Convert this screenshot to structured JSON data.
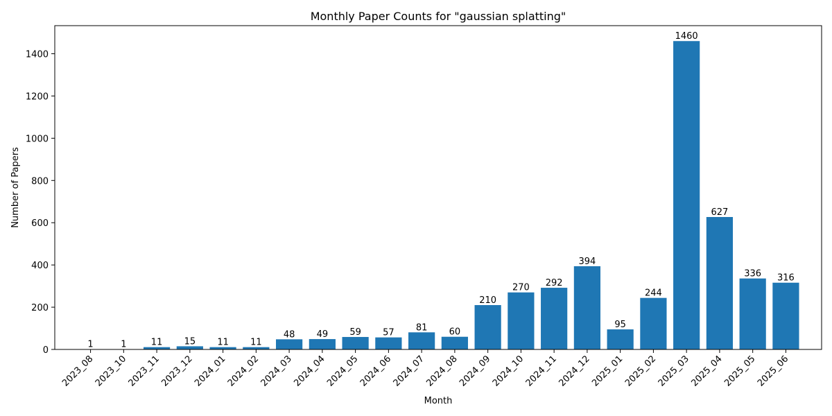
{
  "chart_data": {
    "type": "bar",
    "title": "Monthly Paper Counts for \"gaussian splatting\"",
    "xlabel": "Month",
    "ylabel": "Number of Papers",
    "ylim": [
      0,
      1533
    ],
    "yticks": [
      0,
      200,
      400,
      600,
      800,
      1000,
      1200,
      1400
    ],
    "bar_color": "#1f77b4",
    "grid": false,
    "categories": [
      "2023_08",
      "2023_10",
      "2023_11",
      "2023_12",
      "2024_01",
      "2024_02",
      "2024_03",
      "2024_04",
      "2024_05",
      "2024_06",
      "2024_07",
      "2024_08",
      "2024_09",
      "2024_10",
      "2024_11",
      "2024_12",
      "2025_01",
      "2025_02",
      "2025_03",
      "2025_04",
      "2025_05",
      "2025_06"
    ],
    "values": [
      1,
      1,
      11,
      15,
      11,
      11,
      48,
      49,
      59,
      57,
      81,
      60,
      210,
      270,
      292,
      394,
      95,
      244,
      1460,
      627,
      336,
      316
    ]
  }
}
